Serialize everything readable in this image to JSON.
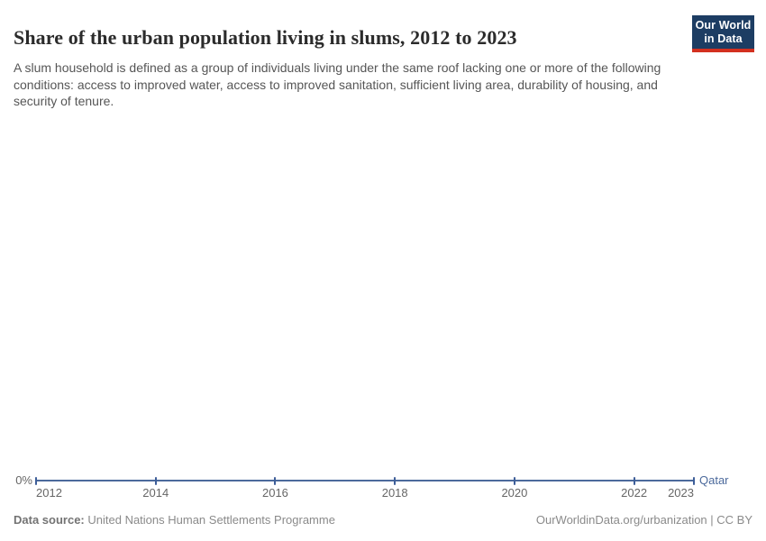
{
  "header": {
    "title": "Share of the urban population living in slums, 2012 to 2023",
    "subtitle": "A slum household is defined as a group of individuals living under the same roof lacking one or more of the following conditions: access to improved water, access to improved sanitation, sufficient living area, durability of housing, and security of tenure."
  },
  "logo": {
    "line1": "Our World",
    "line2": "in Data",
    "bg_color": "#1D3D63",
    "accent_color": "#D3301F"
  },
  "chart_data": {
    "type": "line",
    "title": "Share of the urban population living in slums, 2012 to 2023",
    "x": [
      2012,
      2014,
      2016,
      2018,
      2020,
      2022,
      2023
    ],
    "series": [
      {
        "name": "Qatar",
        "values": [
          0,
          0,
          0,
          0,
          0,
          0,
          0
        ],
        "color": "#4C6A9C"
      }
    ],
    "unit": "%",
    "x_tick_labels": [
      "2012",
      "2014",
      "2016",
      "2018",
      "2020",
      "2022",
      "2023"
    ],
    "y_tick_labels": [
      "0%"
    ],
    "xlim": [
      2012,
      2023
    ],
    "ylim": [
      0,
      0
    ],
    "grid": false,
    "legend_position": "end-of-line"
  },
  "axis": {
    "zero_label": "0%"
  },
  "footer": {
    "source_label": "Data source:",
    "source_text": "United Nations Human Settlements Programme",
    "rights": "OurWorldinData.org/urbanization | CC BY"
  }
}
